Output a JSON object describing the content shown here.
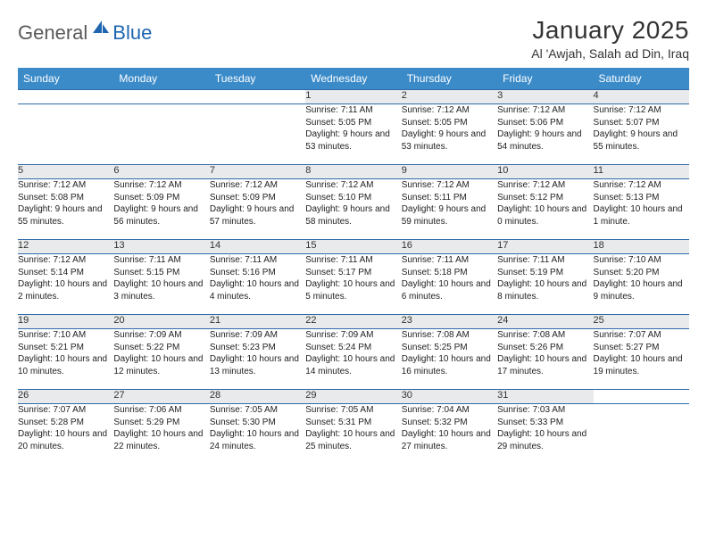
{
  "logo": {
    "general": "General",
    "blue": "Blue"
  },
  "title": "January 2025",
  "location": "Al 'Awjah, Salah ad Din, Iraq",
  "colors": {
    "header_bg": "#3b8bc9",
    "header_text": "#ffffff",
    "daynum_bg": "#e9eaeb",
    "border": "#2f6aa8",
    "logo_gray": "#5a5a5a",
    "logo_blue": "#1e66b0"
  },
  "day_headers": [
    "Sunday",
    "Monday",
    "Tuesday",
    "Wednesday",
    "Thursday",
    "Friday",
    "Saturday"
  ],
  "weeks": [
    [
      null,
      null,
      null,
      {
        "n": "1",
        "sr": "7:11 AM",
        "ss": "5:05 PM",
        "dl": "9 hours and 53 minutes."
      },
      {
        "n": "2",
        "sr": "7:12 AM",
        "ss": "5:05 PM",
        "dl": "9 hours and 53 minutes."
      },
      {
        "n": "3",
        "sr": "7:12 AM",
        "ss": "5:06 PM",
        "dl": "9 hours and 54 minutes."
      },
      {
        "n": "4",
        "sr": "7:12 AM",
        "ss": "5:07 PM",
        "dl": "9 hours and 55 minutes."
      }
    ],
    [
      {
        "n": "5",
        "sr": "7:12 AM",
        "ss": "5:08 PM",
        "dl": "9 hours and 55 minutes."
      },
      {
        "n": "6",
        "sr": "7:12 AM",
        "ss": "5:09 PM",
        "dl": "9 hours and 56 minutes."
      },
      {
        "n": "7",
        "sr": "7:12 AM",
        "ss": "5:09 PM",
        "dl": "9 hours and 57 minutes."
      },
      {
        "n": "8",
        "sr": "7:12 AM",
        "ss": "5:10 PM",
        "dl": "9 hours and 58 minutes."
      },
      {
        "n": "9",
        "sr": "7:12 AM",
        "ss": "5:11 PM",
        "dl": "9 hours and 59 minutes."
      },
      {
        "n": "10",
        "sr": "7:12 AM",
        "ss": "5:12 PM",
        "dl": "10 hours and 0 minutes."
      },
      {
        "n": "11",
        "sr": "7:12 AM",
        "ss": "5:13 PM",
        "dl": "10 hours and 1 minute."
      }
    ],
    [
      {
        "n": "12",
        "sr": "7:12 AM",
        "ss": "5:14 PM",
        "dl": "10 hours and 2 minutes."
      },
      {
        "n": "13",
        "sr": "7:11 AM",
        "ss": "5:15 PM",
        "dl": "10 hours and 3 minutes."
      },
      {
        "n": "14",
        "sr": "7:11 AM",
        "ss": "5:16 PM",
        "dl": "10 hours and 4 minutes."
      },
      {
        "n": "15",
        "sr": "7:11 AM",
        "ss": "5:17 PM",
        "dl": "10 hours and 5 minutes."
      },
      {
        "n": "16",
        "sr": "7:11 AM",
        "ss": "5:18 PM",
        "dl": "10 hours and 6 minutes."
      },
      {
        "n": "17",
        "sr": "7:11 AM",
        "ss": "5:19 PM",
        "dl": "10 hours and 8 minutes."
      },
      {
        "n": "18",
        "sr": "7:10 AM",
        "ss": "5:20 PM",
        "dl": "10 hours and 9 minutes."
      }
    ],
    [
      {
        "n": "19",
        "sr": "7:10 AM",
        "ss": "5:21 PM",
        "dl": "10 hours and 10 minutes."
      },
      {
        "n": "20",
        "sr": "7:09 AM",
        "ss": "5:22 PM",
        "dl": "10 hours and 12 minutes."
      },
      {
        "n": "21",
        "sr": "7:09 AM",
        "ss": "5:23 PM",
        "dl": "10 hours and 13 minutes."
      },
      {
        "n": "22",
        "sr": "7:09 AM",
        "ss": "5:24 PM",
        "dl": "10 hours and 14 minutes."
      },
      {
        "n": "23",
        "sr": "7:08 AM",
        "ss": "5:25 PM",
        "dl": "10 hours and 16 minutes."
      },
      {
        "n": "24",
        "sr": "7:08 AM",
        "ss": "5:26 PM",
        "dl": "10 hours and 17 minutes."
      },
      {
        "n": "25",
        "sr": "7:07 AM",
        "ss": "5:27 PM",
        "dl": "10 hours and 19 minutes."
      }
    ],
    [
      {
        "n": "26",
        "sr": "7:07 AM",
        "ss": "5:28 PM",
        "dl": "10 hours and 20 minutes."
      },
      {
        "n": "27",
        "sr": "7:06 AM",
        "ss": "5:29 PM",
        "dl": "10 hours and 22 minutes."
      },
      {
        "n": "28",
        "sr": "7:05 AM",
        "ss": "5:30 PM",
        "dl": "10 hours and 24 minutes."
      },
      {
        "n": "29",
        "sr": "7:05 AM",
        "ss": "5:31 PM",
        "dl": "10 hours and 25 minutes."
      },
      {
        "n": "30",
        "sr": "7:04 AM",
        "ss": "5:32 PM",
        "dl": "10 hours and 27 minutes."
      },
      {
        "n": "31",
        "sr": "7:03 AM",
        "ss": "5:33 PM",
        "dl": "10 hours and 29 minutes."
      },
      null
    ]
  ],
  "labels": {
    "sunrise": "Sunrise:",
    "sunset": "Sunset:",
    "daylight": "Daylight:"
  }
}
